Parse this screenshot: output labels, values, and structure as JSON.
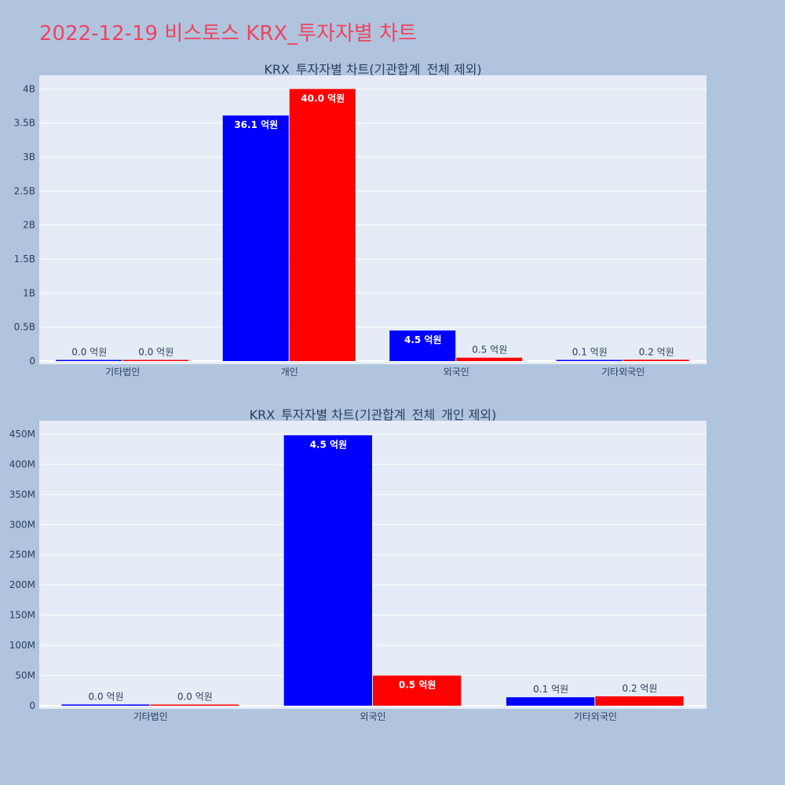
{
  "page_title": "2022-12-19 비스토스 KRX_투자자별 차트",
  "colors": {
    "page_bg": "#b0c4de",
    "plot_bg": "#e5ecf6",
    "title": "#ef4460",
    "series_a": "#0000ff",
    "series_b": "#ff0000"
  },
  "chart_data": [
    {
      "type": "bar",
      "title": "KRX_투자자별 차트(기관합계_전체 제외)",
      "categories": [
        "기타법인",
        "개인",
        "외국인",
        "기타외국인"
      ],
      "series": [
        {
          "color": "#0000ff",
          "values": [
            0,
            3610000000,
            450000000,
            10000000
          ],
          "labels": [
            "0.0 억원",
            "36.1 억원",
            "4.5 억원",
            "0.1 억원"
          ]
        },
        {
          "color": "#ff0000",
          "values": [
            0,
            4000000000,
            50000000,
            20000000
          ],
          "labels": [
            "0.0 억원",
            "40.0 억원",
            "0.5 억원",
            "0.2 억원"
          ]
        }
      ],
      "yticks": [
        0,
        500000000,
        1000000000,
        1500000000,
        2000000000,
        2500000000,
        3000000000,
        3500000000,
        4000000000
      ],
      "ytick_labels": [
        "0",
        "0.5B",
        "1B",
        "1.5B",
        "2B",
        "2.5B",
        "3B",
        "3.5B",
        "4B"
      ],
      "ylim": [
        0,
        4200000000
      ],
      "grid": true
    },
    {
      "type": "bar",
      "title": "KRX_투자자별 차트(기관합계_전체_개인 제외)",
      "categories": [
        "기타법인",
        "외국인",
        "기타외국인"
      ],
      "series": [
        {
          "color": "#0000ff",
          "values": [
            2000000,
            448000000,
            14000000
          ],
          "labels": [
            "0.0 억원",
            "4.5 억원",
            "0.1 억원"
          ]
        },
        {
          "color": "#ff0000",
          "values": [
            1000000,
            50000000,
            15500000
          ],
          "labels": [
            "0.0 억원",
            "0.5 억원",
            "0.2 억원"
          ]
        }
      ],
      "yticks": [
        0,
        50000000,
        100000000,
        150000000,
        200000000,
        250000000,
        300000000,
        350000000,
        400000000,
        450000000
      ],
      "ytick_labels": [
        "0",
        "50M",
        "100M",
        "150M",
        "200M",
        "250M",
        "300M",
        "350M",
        "400M",
        "450M"
      ],
      "ylim": [
        0,
        472000000
      ],
      "grid": true
    }
  ]
}
